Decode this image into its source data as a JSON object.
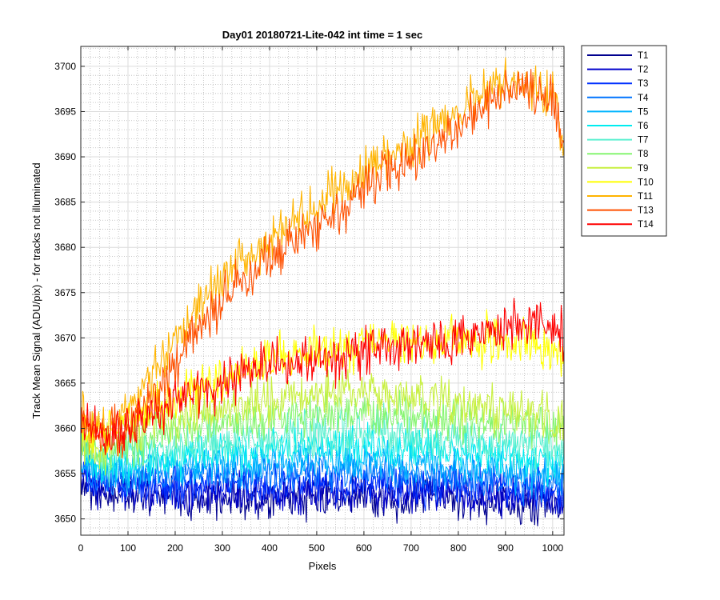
{
  "chart_data": {
    "type": "line",
    "title": "Day01 20180721-Lite-042 int time = 1 sec",
    "xlabel": "Pixels",
    "ylabel": "Track Mean Signal (ADU/pix) - for tracks not illuminated",
    "xlim": [
      0,
      1024
    ],
    "ylim": [
      3648.2,
      3702.2
    ],
    "xticks": [
      0,
      100,
      200,
      300,
      400,
      500,
      600,
      700,
      800,
      900,
      1000
    ],
    "yticks": [
      3650,
      3655,
      3660,
      3665,
      3670,
      3675,
      3680,
      3685,
      3690,
      3695,
      3700
    ],
    "grid": true,
    "minor_grid": true,
    "legend_position": "outside top-right",
    "x": [
      0,
      50,
      100,
      150,
      200,
      250,
      300,
      350,
      400,
      450,
      500,
      550,
      600,
      650,
      700,
      750,
      800,
      850,
      900,
      950,
      1000,
      1024
    ],
    "series": [
      {
        "name": "T1",
        "color": "#00008f",
        "noise": 1.1,
        "values": [
          3654.0,
          3652.6,
          3652.5,
          3652.4,
          3652.4,
          3652.3,
          3652.2,
          3652.2,
          3652.2,
          3652.3,
          3652.3,
          3652.3,
          3652.3,
          3652.3,
          3652.2,
          3652.2,
          3652.1,
          3652.0,
          3651.9,
          3651.8,
          3651.6,
          3651.5
        ]
      },
      {
        "name": "T2",
        "color": "#0000cc",
        "noise": 1.1,
        "values": [
          3655.0,
          3653.5,
          3653.2,
          3653.1,
          3653.0,
          3653.0,
          3653.0,
          3653.0,
          3653.0,
          3653.0,
          3653.0,
          3653.0,
          3653.0,
          3653.0,
          3652.9,
          3652.9,
          3652.8,
          3652.7,
          3652.6,
          3652.5,
          3652.3,
          3652.2
        ]
      },
      {
        "name": "T3",
        "color": "#0030ff",
        "noise": 1.1,
        "values": [
          3655.4,
          3654.0,
          3653.8,
          3653.8,
          3653.8,
          3653.8,
          3653.8,
          3653.8,
          3653.9,
          3653.9,
          3653.9,
          3653.9,
          3653.9,
          3653.9,
          3653.8,
          3653.8,
          3653.7,
          3653.6,
          3653.5,
          3653.3,
          3653.1,
          3653.0
        ]
      },
      {
        "name": "T4",
        "color": "#0074ff",
        "noise": 1.1,
        "values": [
          3656.0,
          3654.8,
          3654.7,
          3654.7,
          3654.8,
          3654.8,
          3654.9,
          3654.9,
          3655.0,
          3655.0,
          3655.0,
          3655.0,
          3655.0,
          3655.0,
          3654.9,
          3654.8,
          3654.7,
          3654.6,
          3654.4,
          3654.2,
          3654.0,
          3653.8
        ]
      },
      {
        "name": "T5",
        "color": "#00b4ff",
        "noise": 1.1,
        "values": [
          3656.5,
          3655.4,
          3655.4,
          3655.6,
          3655.8,
          3656.0,
          3656.1,
          3656.2,
          3656.3,
          3656.4,
          3656.4,
          3656.4,
          3656.4,
          3656.3,
          3656.2,
          3656.1,
          3655.9,
          3655.7,
          3655.5,
          3655.3,
          3655.0,
          3654.8
        ]
      },
      {
        "name": "T6",
        "color": "#00ecf0",
        "noise": 1.1,
        "values": [
          3657.2,
          3656.1,
          3656.3,
          3656.7,
          3657.0,
          3657.3,
          3657.5,
          3657.7,
          3657.8,
          3657.9,
          3658.0,
          3658.0,
          3658.0,
          3657.9,
          3657.8,
          3657.6,
          3657.4,
          3657.2,
          3656.9,
          3656.6,
          3656.3,
          3656.1
        ]
      },
      {
        "name": "T7",
        "color": "#5cf0d0",
        "noise": 1.2,
        "values": [
          3657.6,
          3656.7,
          3657.1,
          3657.6,
          3658.0,
          3658.4,
          3658.7,
          3659.0,
          3659.2,
          3659.3,
          3659.4,
          3659.5,
          3659.5,
          3659.4,
          3659.3,
          3659.1,
          3658.9,
          3658.6,
          3658.3,
          3658.0,
          3657.6,
          3657.4
        ]
      },
      {
        "name": "T8",
        "color": "#86f570",
        "noise": 1.2,
        "values": [
          3658.2,
          3657.3,
          3658.0,
          3658.8,
          3659.5,
          3660.0,
          3660.5,
          3660.8,
          3661.1,
          3661.3,
          3661.4,
          3661.5,
          3661.5,
          3661.5,
          3661.4,
          3661.2,
          3661.0,
          3660.8,
          3660.6,
          3660.4,
          3660.2,
          3660.1
        ]
      },
      {
        "name": "T9",
        "color": "#c8f040",
        "noise": 1.3,
        "values": [
          3658.8,
          3658.0,
          3659.0,
          3660.0,
          3660.9,
          3661.6,
          3662.2,
          3662.7,
          3663.1,
          3663.4,
          3663.6,
          3663.8,
          3663.9,
          3663.8,
          3663.6,
          3663.3,
          3663.0,
          3662.6,
          3662.1,
          3661.6,
          3661.1,
          3660.8
        ]
      },
      {
        "name": "T10",
        "color": "#ffff00",
        "noise": 1.3,
        "values": [
          3660.5,
          3659.5,
          3660.8,
          3662.0,
          3663.5,
          3664.8,
          3665.8,
          3666.6,
          3667.3,
          3668.0,
          3668.6,
          3669.1,
          3669.5,
          3669.7,
          3669.8,
          3669.8,
          3669.7,
          3669.6,
          3669.6,
          3669.5,
          3668.5,
          3667.5
        ]
      },
      {
        "name": "T11",
        "color": "#ffb400",
        "noise": 1.3,
        "values": [
          3661.0,
          3659.5,
          3661.5,
          3665.5,
          3670.0,
          3673.5,
          3676.5,
          3678.7,
          3680.8,
          3682.8,
          3684.7,
          3686.6,
          3688.4,
          3690.1,
          3691.8,
          3693.5,
          3695.5,
          3697.2,
          3698.3,
          3698.1,
          3696.8,
          3691.0
        ]
      },
      {
        "name": "T13",
        "color": "#ff5000",
        "noise": 1.3,
        "values": [
          3660.5,
          3659.0,
          3659.5,
          3663.0,
          3667.0,
          3671.0,
          3674.0,
          3676.5,
          3678.6,
          3680.5,
          3682.5,
          3684.3,
          3686.0,
          3687.7,
          3689.4,
          3691.1,
          3693.0,
          3695.2,
          3697.3,
          3697.8,
          3696.2,
          3691.0
        ]
      },
      {
        "name": "T14",
        "color": "#ff0000",
        "noise": 1.3,
        "values": [
          3661.0,
          3659.0,
          3660.5,
          3662.0,
          3663.0,
          3664.0,
          3665.3,
          3666.3,
          3667.0,
          3667.4,
          3667.8,
          3668.1,
          3668.4,
          3668.7,
          3669.0,
          3669.4,
          3669.8,
          3670.4,
          3671.0,
          3671.5,
          3671.2,
          3670.5
        ]
      }
    ]
  }
}
